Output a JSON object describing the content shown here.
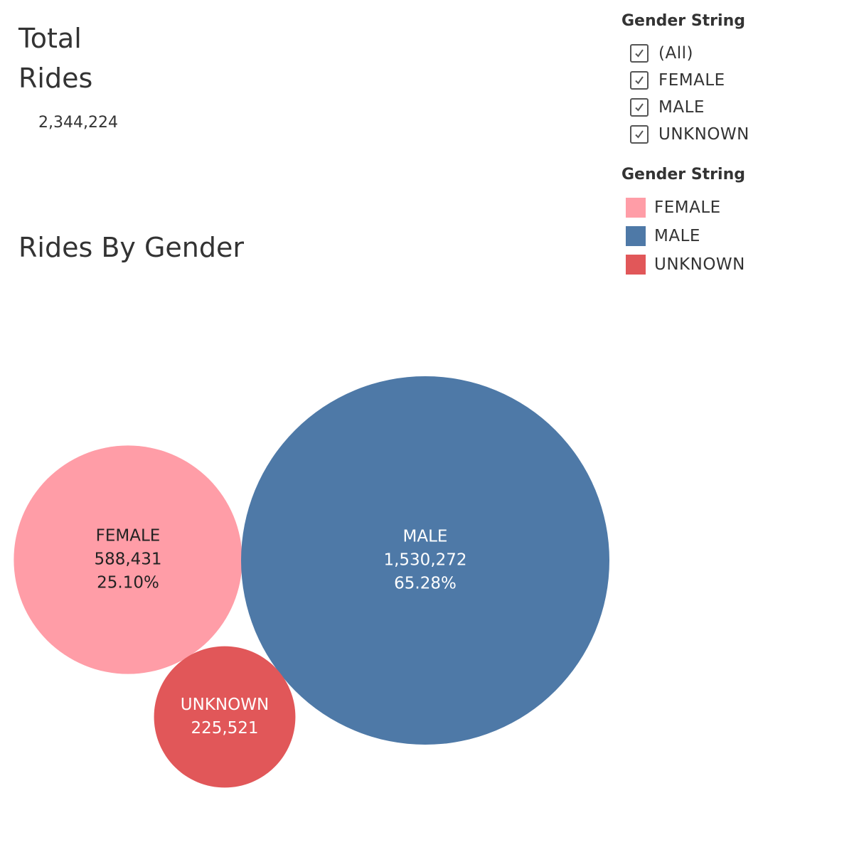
{
  "kpi": {
    "title": "Total Rides",
    "value": "2,344,224"
  },
  "chart_title": "Rides By Gender",
  "filter": {
    "header": "Gender String",
    "items": [
      {
        "label": "(All)",
        "checked": true
      },
      {
        "label": "FEMALE",
        "checked": true
      },
      {
        "label": "MALE",
        "checked": true
      },
      {
        "label": "UNKNOWN",
        "checked": true
      }
    ]
  },
  "legend": {
    "header": "Gender String",
    "items": [
      {
        "label": "FEMALE",
        "color": "#ff9da7"
      },
      {
        "label": "MALE",
        "color": "#4e79a7"
      },
      {
        "label": "UNKNOWN",
        "color": "#e15759"
      }
    ]
  },
  "chart_data": {
    "type": "bubble",
    "title": "Rides By Gender",
    "series": [
      {
        "name": "FEMALE",
        "value": 588431,
        "value_label": "588,431",
        "percent_label": "25.10%",
        "color": "#ff9da7",
        "text_color": "#222222"
      },
      {
        "name": "MALE",
        "value": 1530272,
        "value_label": "1,530,272",
        "percent_label": "65.28%",
        "color": "#4e79a7",
        "text_color": "#ffffff"
      },
      {
        "name": "UNKNOWN",
        "value": 225521,
        "value_label": "225,521",
        "percent_label": "",
        "color": "#e15759",
        "text_color": "#ffffff"
      }
    ]
  }
}
